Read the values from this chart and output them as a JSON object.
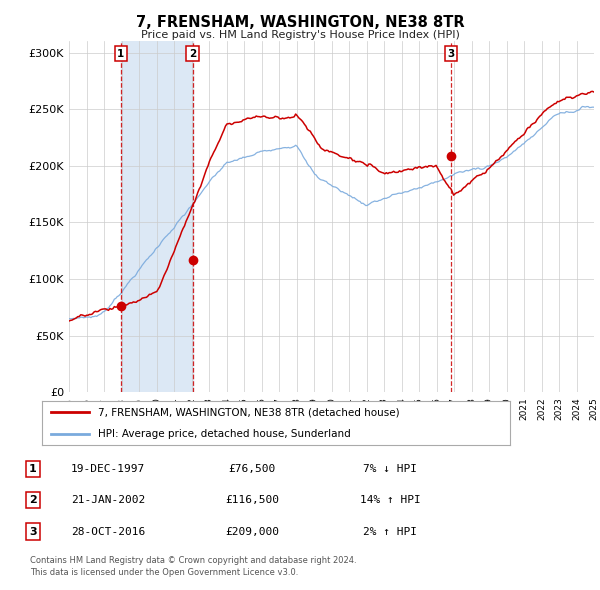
{
  "title": "7, FRENSHAM, WASHINGTON, NE38 8TR",
  "subtitle": "Price paid vs. HM Land Registry's House Price Index (HPI)",
  "legend_line1": "7, FRENSHAM, WASHINGTON, NE38 8TR (detached house)",
  "legend_line2": "HPI: Average price, detached house, Sunderland",
  "price_color": "#cc0000",
  "hpi_color": "#7aaadd",
  "shade_color": "#dce8f5",
  "background_color": "#ffffff",
  "plot_bg_color": "#ffffff",
  "grid_color": "#cccccc",
  "sale_points": [
    {
      "year": 1997.96,
      "value": 76500,
      "label": "1"
    },
    {
      "year": 2002.06,
      "value": 116500,
      "label": "2"
    },
    {
      "year": 2016.83,
      "value": 209000,
      "label": "3"
    }
  ],
  "table_rows": [
    {
      "num": "1",
      "date": "19-DEC-1997",
      "price": "£76,500",
      "hpi": "7% ↓ HPI"
    },
    {
      "num": "2",
      "date": "21-JAN-2002",
      "price": "£116,500",
      "hpi": "14% ↑ HPI"
    },
    {
      "num": "3",
      "date": "28-OCT-2016",
      "price": "£209,000",
      "hpi": "2% ↑ HPI"
    }
  ],
  "footer": "Contains HM Land Registry data © Crown copyright and database right 2024.\nThis data is licensed under the Open Government Licence v3.0.",
  "xmin": 1995,
  "xmax": 2025,
  "ymin": 0,
  "ymax": 310000,
  "yticks": [
    0,
    50000,
    100000,
    150000,
    200000,
    250000,
    300000
  ],
  "ylabels": [
    "£0",
    "£50K",
    "£100K",
    "£150K",
    "£200K",
    "£250K",
    "£300K"
  ],
  "xticks": [
    1995,
    1996,
    1997,
    1998,
    1999,
    2000,
    2001,
    2002,
    2003,
    2004,
    2005,
    2006,
    2007,
    2008,
    2009,
    2010,
    2011,
    2012,
    2013,
    2014,
    2015,
    2016,
    2017,
    2018,
    2019,
    2020,
    2021,
    2022,
    2023,
    2024,
    2025
  ]
}
